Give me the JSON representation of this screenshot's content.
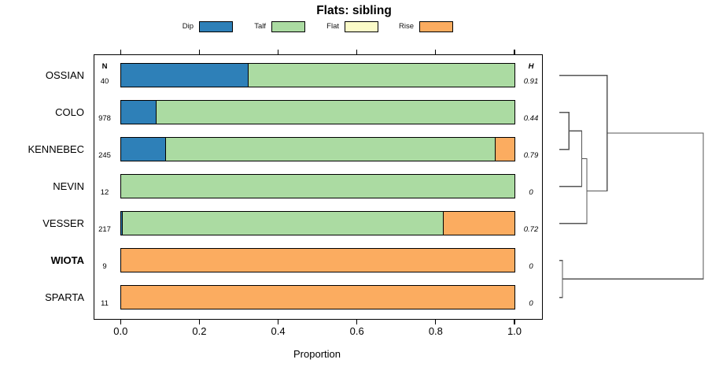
{
  "title": "Flats: sibling",
  "legend": {
    "items": [
      {
        "label": "Dip",
        "color": "#2E80B8"
      },
      {
        "label": "Talf",
        "color": "#ABDBA2"
      },
      {
        "label": "Flat",
        "color": "#FBFBC8"
      },
      {
        "label": "Rise",
        "color": "#FBAC60"
      }
    ]
  },
  "columns": {
    "n_header": "N",
    "h_header": "H"
  },
  "axis": {
    "xlabel": "Proportion",
    "tick_values": [
      0,
      0.2,
      0.4,
      0.6,
      0.8,
      1.0
    ],
    "tick_labels": [
      "0.0",
      "0.2",
      "0.4",
      "0.6",
      "0.8",
      "1.0"
    ]
  },
  "chart_data": {
    "type": "bar",
    "orientation": "horizontal",
    "stacked": true,
    "title": "Flats: sibling",
    "xlabel": "Proportion",
    "xlim": [
      0,
      1
    ],
    "grid": false,
    "legend_position": "top",
    "categories": [
      "OSSIAN",
      "COLO",
      "KENNEBEC",
      "NEVIN",
      "VESSER",
      "WIOTA",
      "SPARTA"
    ],
    "bold_flags": [
      false,
      false,
      false,
      false,
      false,
      true,
      false
    ],
    "n_values": [
      40,
      978,
      245,
      12,
      217,
      9,
      11
    ],
    "h_values": [
      "0.91",
      "0.44",
      "0.79",
      "0",
      "0.72",
      "0",
      "0"
    ],
    "series": [
      {
        "name": "Dip",
        "color": "#2E80B8",
        "values": [
          0.325,
          0.091,
          0.114,
          0,
          0.005,
          0,
          0
        ]
      },
      {
        "name": "Talf",
        "color": "#ABDBA2",
        "values": [
          0.675,
          0.909,
          0.839,
          1,
          0.815,
          0,
          0
        ]
      },
      {
        "name": "Flat",
        "color": "#FBFBC8",
        "values": [
          0,
          0,
          0,
          0,
          0,
          0,
          0
        ]
      },
      {
        "name": "Rise",
        "color": "#FBAC60",
        "values": [
          0,
          0,
          0.047,
          0,
          0.18,
          1,
          1
        ]
      }
    ],
    "dendrogram": {
      "leaves": [
        "OSSIAN",
        "COLO",
        "KENNEBEC",
        "NEVIN",
        "VESSER",
        "WIOTA",
        "SPARTA"
      ],
      "merges": [
        {
          "id": "merge0",
          "children": [
            "COLO",
            "KENNEBEC"
          ],
          "height": 0.067
        },
        {
          "id": "merge1",
          "children": [
            "merge0",
            "NEVIN"
          ],
          "height": 0.155
        },
        {
          "id": "merge2",
          "children": [
            "merge1",
            "VESSER"
          ],
          "height": 0.191
        },
        {
          "id": "merge3",
          "children": [
            "OSSIAN",
            "merge2"
          ],
          "height": 0.332
        },
        {
          "id": "merge4",
          "children": [
            "WIOTA",
            "SPARTA"
          ],
          "height": 0.022
        },
        {
          "id": "root",
          "children": [
            "merge3",
            "merge4"
          ],
          "height": 1.0
        }
      ]
    }
  }
}
